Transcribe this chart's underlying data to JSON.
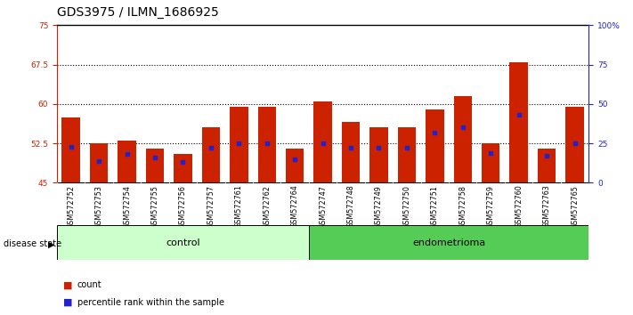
{
  "title": "GDS3975 / ILMN_1686925",
  "samples": [
    "GSM572752",
    "GSM572753",
    "GSM572754",
    "GSM572755",
    "GSM572756",
    "GSM572757",
    "GSM572761",
    "GSM572762",
    "GSM572764",
    "GSM572747",
    "GSM572748",
    "GSM572749",
    "GSM572750",
    "GSM572751",
    "GSM572758",
    "GSM572759",
    "GSM572760",
    "GSM572763",
    "GSM572765"
  ],
  "bar_heights": [
    57.5,
    52.5,
    53.0,
    51.5,
    50.5,
    55.5,
    59.5,
    59.5,
    51.5,
    60.5,
    56.5,
    55.5,
    55.5,
    59.0,
    61.5,
    52.5,
    68.0,
    51.5,
    59.5
  ],
  "percentile_ranks": [
    23,
    14,
    18,
    16,
    13,
    22,
    25,
    25,
    15,
    25,
    22,
    22,
    22,
    32,
    35,
    19,
    43,
    17,
    25
  ],
  "baseline": 45,
  "ylim_left": [
    45,
    75
  ],
  "ylim_right": [
    0,
    100
  ],
  "yticks_left": [
    45,
    52.5,
    60,
    67.5,
    75
  ],
  "yticks_right": [
    0,
    25,
    50,
    75,
    100
  ],
  "ytick_labels_left": [
    "45",
    "52.5",
    "60",
    "67.5",
    "75"
  ],
  "ytick_labels_right": [
    "0",
    "25",
    "50",
    "75",
    "100%"
  ],
  "hlines": [
    52.5,
    60.0,
    67.5
  ],
  "control_samples": 9,
  "endometrioma_samples": 10,
  "bar_color": "#cc2200",
  "blue_color": "#2222cc",
  "control_label": "control",
  "endometrioma_label": "endometrioma",
  "disease_state_label": "disease state",
  "legend_count": "count",
  "legend_percentile": "percentile rank within the sample",
  "bg_color": "#ffffff",
  "plot_bg": "#ffffff",
  "tick_area_bg": "#bbbbbb",
  "group_bar_light_green": "#ccffcc",
  "group_bar_dark_green": "#55cc55",
  "title_fontsize": 10,
  "tick_fontsize": 6.5,
  "label_fontsize": 8
}
